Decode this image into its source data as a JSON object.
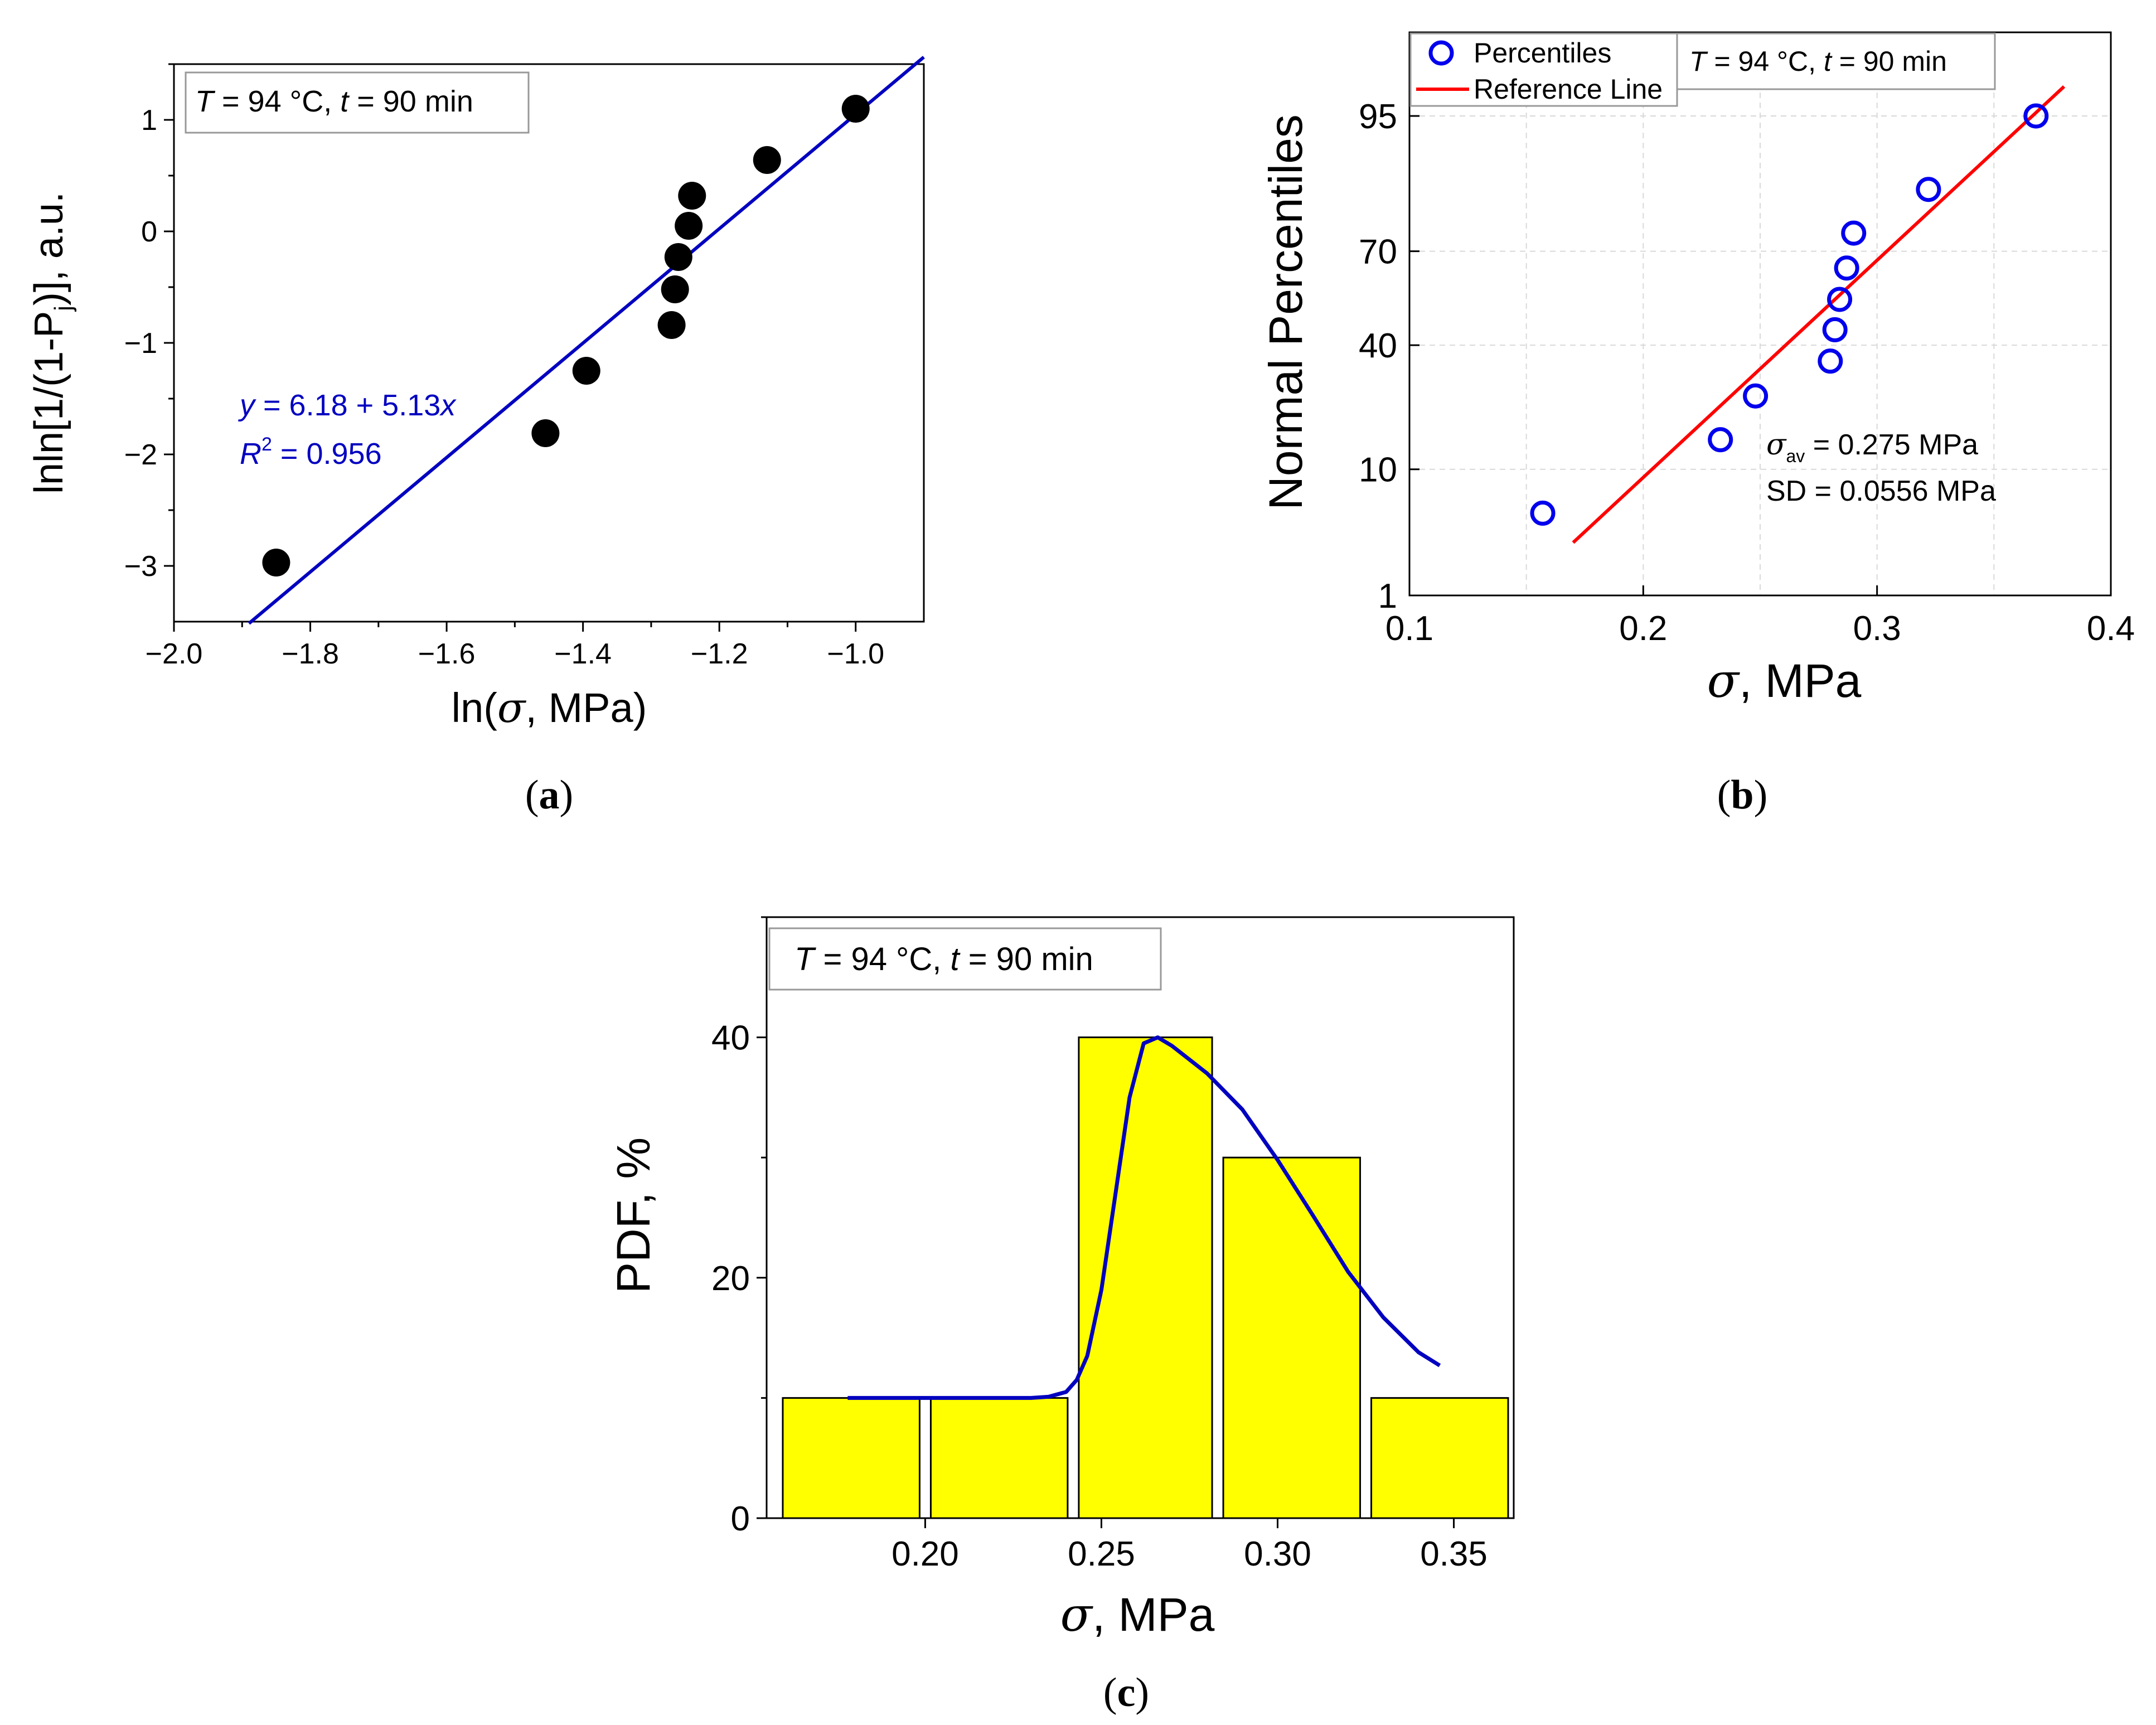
{
  "colors": {
    "axis": "#000000",
    "grid": "#d9d9d9",
    "scatter_a": "#000000",
    "fit_a": "#0000c0",
    "scatter_b": "#0000ee",
    "ref_b": "#ff0000",
    "bar_fill": "#ffff00",
    "bar_stroke": "#000000",
    "curve_c": "#0000c0",
    "panel_box": "#999999"
  },
  "chart_data": [
    {
      "id": "a",
      "type": "scatter",
      "caption": "a",
      "annotation_T": "T",
      "annotation_rest": " = 94 °C, ",
      "annotation_t": "t",
      "annotation_end": " = 90 min",
      "xlabel_pre": "ln(",
      "xlabel_sym": "σ",
      "xlabel_post": ", MPa)",
      "ylabel_main": "lnln[1/(1-P",
      "ylabel_sub": "j",
      "ylabel_end": ")], a.u.",
      "xlim": [
        -2.0,
        -0.9
      ],
      "ylim": [
        -3.5,
        1.5
      ],
      "xticks": [
        -2.0,
        -1.8,
        -1.6,
        -1.4,
        -1.2,
        -1.0
      ],
      "xtick_labels": [
        "−2.0",
        "−1.8",
        "−1.6",
        "−1.4",
        "−1.2",
        "−1.0"
      ],
      "yticks": [
        -3,
        -2,
        -1,
        0,
        1
      ],
      "ytick_labels": [
        "−3",
        "−2",
        "−1",
        "0",
        "1"
      ],
      "points": [
        {
          "x": -1.85,
          "y": -2.97
        },
        {
          "x": -1.455,
          "y": -1.81
        },
        {
          "x": -1.395,
          "y": -1.25
        },
        {
          "x": -1.27,
          "y": -0.84
        },
        {
          "x": -1.265,
          "y": -0.52
        },
        {
          "x": -1.26,
          "y": -0.23
        },
        {
          "x": -1.245,
          "y": 0.05
        },
        {
          "x": -1.24,
          "y": 0.32
        },
        {
          "x": -1.13,
          "y": 0.64
        },
        {
          "x": -1.0,
          "y": 1.1
        }
      ],
      "fit": {
        "intercept": 6.18,
        "slope": 5.13,
        "x_range": [
          -1.89,
          -0.9
        ]
      },
      "fit_eq_y": "y",
      "fit_eq_rest": " = 6.18 + 5.13",
      "fit_eq_x": "x",
      "fit_r_letter": "R",
      "fit_r_sup": "2",
      "fit_r_value": " = 0.956"
    },
    {
      "id": "b",
      "type": "scatter",
      "caption": "b",
      "annotation_T": "T",
      "annotation_rest": " = 94 °C, ",
      "annotation_t": "t",
      "annotation_end": " = 90 min",
      "xlabel_sym": "σ",
      "xlabel_post": ", MPa",
      "ylabel": "Normal Percentiles",
      "xlim": [
        0.1,
        0.4
      ],
      "xticks": [
        0.1,
        0.2,
        0.3,
        0.4
      ],
      "xtick_labels": [
        "0.1",
        "0.2",
        "0.3",
        "0.4"
      ],
      "ytick_values": [
        1,
        10,
        40,
        70,
        95
      ],
      "ytick_labels": [
        "1",
        "10",
        "40",
        "70",
        "95"
      ],
      "points": [
        {
          "x": 0.157,
          "y": 5
        },
        {
          "x": 0.233,
          "y": 15
        },
        {
          "x": 0.248,
          "y": 25
        },
        {
          "x": 0.28,
          "y": 35
        },
        {
          "x": 0.282,
          "y": 45
        },
        {
          "x": 0.284,
          "y": 55
        },
        {
          "x": 0.287,
          "y": 65
        },
        {
          "x": 0.29,
          "y": 75
        },
        {
          "x": 0.322,
          "y": 85
        },
        {
          "x": 0.368,
          "y": 95
        }
      ],
      "reference_line": {
        "x_range": [
          0.17,
          0.38
        ],
        "mean": 0.275,
        "sd": 0.0556
      },
      "legend": [
        "Percentiles",
        "Reference Line"
      ],
      "legend_position": "top-left",
      "stat_avg_sym": "σ",
      "stat_avg_sub": "av",
      "stat_avg_val": " = 0.275 MPa",
      "stat_sd": "SD = 0.0556 MPa"
    },
    {
      "id": "c",
      "type": "bar",
      "caption": "c",
      "annotation_T": "T",
      "annotation_rest": " = 94 °C, ",
      "annotation_t": "t",
      "annotation_end": " = 90 min",
      "xlabel_sym": "σ",
      "xlabel_post": ", MPa",
      "ylabel": "PDF, %",
      "xlim": [
        0.155,
        0.367
      ],
      "ylim": [
        0,
        50
      ],
      "xticks": [
        0.2,
        0.25,
        0.3,
        0.35
      ],
      "xtick_labels": [
        "0.20",
        "0.25",
        "0.30",
        "0.35"
      ],
      "yticks": [
        0,
        20,
        40
      ],
      "ytick_labels": [
        "0",
        "20",
        "40"
      ],
      "bins": [
        {
          "from": 0.158,
          "to": 0.2,
          "value": 10
        },
        {
          "from": 0.2,
          "to": 0.242,
          "value": 10
        },
        {
          "from": 0.242,
          "to": 0.283,
          "value": 40
        },
        {
          "from": 0.283,
          "to": 0.325,
          "value": 30
        },
        {
          "from": 0.325,
          "to": 0.367,
          "value": 10
        }
      ],
      "curve": {
        "x": [
          0.178,
          0.2,
          0.22,
          0.23,
          0.235,
          0.24,
          0.243,
          0.246,
          0.25,
          0.254,
          0.258,
          0.262,
          0.266,
          0.27,
          0.28,
          0.29,
          0.3,
          0.31,
          0.32,
          0.33,
          0.34,
          0.346
        ],
        "y": [
          10,
          10,
          10,
          10,
          10.1,
          10.5,
          11.5,
          13.5,
          19,
          27,
          35,
          39.5,
          40,
          39.3,
          37,
          34,
          29.8,
          25.2,
          20.5,
          16.7,
          13.8,
          12.7
        ]
      }
    }
  ]
}
